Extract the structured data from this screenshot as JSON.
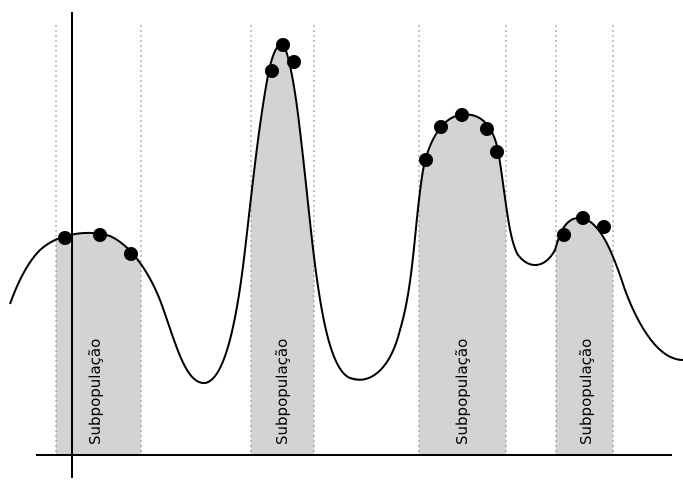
{
  "diagram": {
    "region_label": "Subpopulação",
    "regions": [
      {
        "label": "Subpopulação"
      },
      {
        "label": "Subpopulação"
      },
      {
        "label": "Subpopulação"
      },
      {
        "label": "Subpopulação"
      }
    ],
    "colors": {
      "region_fill": "#d3d3d3",
      "curve": "#000000",
      "points": "#000000",
      "boundary": "#888888",
      "axis": "#000000"
    }
  }
}
